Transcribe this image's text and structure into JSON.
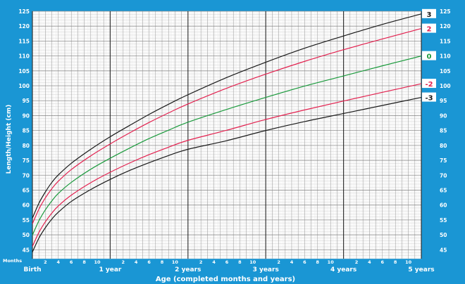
{
  "chart_data": {
    "type": "line",
    "ylabel": "Length/Height (cm)",
    "xlabel": "Age (completed months and years)",
    "months_label": "Months",
    "x_unit": "months",
    "xlim": [
      0,
      60
    ],
    "ylim": [
      42,
      125
    ],
    "y_ticks": [
      45,
      50,
      55,
      60,
      65,
      70,
      75,
      80,
      85,
      90,
      95,
      100,
      105,
      110,
      115,
      120,
      125
    ],
    "month_ticks": [
      {
        "month": 2,
        "label": "2"
      },
      {
        "month": 4,
        "label": "4"
      },
      {
        "month": 6,
        "label": "6"
      },
      {
        "month": 8,
        "label": "8"
      },
      {
        "month": 10,
        "label": "10"
      },
      {
        "month": 14,
        "label": "2"
      },
      {
        "month": 16,
        "label": "4"
      },
      {
        "month": 18,
        "label": "6"
      },
      {
        "month": 20,
        "label": "8"
      },
      {
        "month": 22,
        "label": "10"
      },
      {
        "month": 26,
        "label": "2"
      },
      {
        "month": 28,
        "label": "4"
      },
      {
        "month": 30,
        "label": "6"
      },
      {
        "month": 32,
        "label": "8"
      },
      {
        "month": 34,
        "label": "10"
      },
      {
        "month": 38,
        "label": "2"
      },
      {
        "month": 40,
        "label": "4"
      },
      {
        "month": 42,
        "label": "6"
      },
      {
        "month": 44,
        "label": "8"
      },
      {
        "month": 46,
        "label": "10"
      },
      {
        "month": 50,
        "label": "2"
      },
      {
        "month": 52,
        "label": "4"
      },
      {
        "month": 54,
        "label": "6"
      },
      {
        "month": 56,
        "label": "8"
      },
      {
        "month": 58,
        "label": "10"
      }
    ],
    "year_ticks": [
      {
        "month": 0,
        "label": "Birth"
      },
      {
        "month": 12,
        "label": "1 year"
      },
      {
        "month": 24,
        "label": "2 years"
      },
      {
        "month": 36,
        "label": "3 years"
      },
      {
        "month": 48,
        "label": "4 years"
      },
      {
        "month": 60,
        "label": "5 years"
      }
    ],
    "x": [
      0,
      1,
      2,
      3,
      4,
      6,
      9,
      12,
      15,
      18,
      21,
      24,
      30,
      36,
      42,
      48,
      54,
      60
    ],
    "series": [
      {
        "name": "3",
        "color": "#1a1a1a",
        "values": [
          55.6,
          60.6,
          64.4,
          67.6,
          70.1,
          74.0,
          78.7,
          82.9,
          86.7,
          90.4,
          93.8,
          97.0,
          102.8,
          107.9,
          112.6,
          116.7,
          120.6,
          124.1
        ]
      },
      {
        "name": "2",
        "color": "#e3214f",
        "values": [
          53.7,
          58.6,
          62.4,
          65.5,
          68.0,
          71.9,
          76.5,
          80.5,
          84.2,
          87.7,
          90.9,
          93.9,
          99.2,
          103.9,
          108.2,
          112.1,
          115.7,
          119.2
        ]
      },
      {
        "name": "0",
        "color": "#1a9a3c",
        "values": [
          49.9,
          54.7,
          58.4,
          61.4,
          63.9,
          67.6,
          72.0,
          75.7,
          79.1,
          82.3,
          85.1,
          87.8,
          92.1,
          96.1,
          99.9,
          103.3,
          106.7,
          110.0
        ]
      },
      {
        "name": "-2",
        "color": "#e3214f",
        "values": [
          46.1,
          50.8,
          54.4,
          57.3,
          59.7,
          63.3,
          67.5,
          71.0,
          74.1,
          76.9,
          79.4,
          81.7,
          85.1,
          88.7,
          91.9,
          94.9,
          97.8,
          100.7
        ]
      },
      {
        "name": "-3",
        "color": "#1a1a1a",
        "values": [
          44.2,
          48.9,
          52.4,
          55.3,
          57.6,
          61.2,
          65.2,
          68.6,
          71.6,
          74.2,
          76.6,
          78.7,
          81.6,
          85.0,
          88.0,
          90.7,
          93.4,
          96.1
        ]
      }
    ]
  }
}
